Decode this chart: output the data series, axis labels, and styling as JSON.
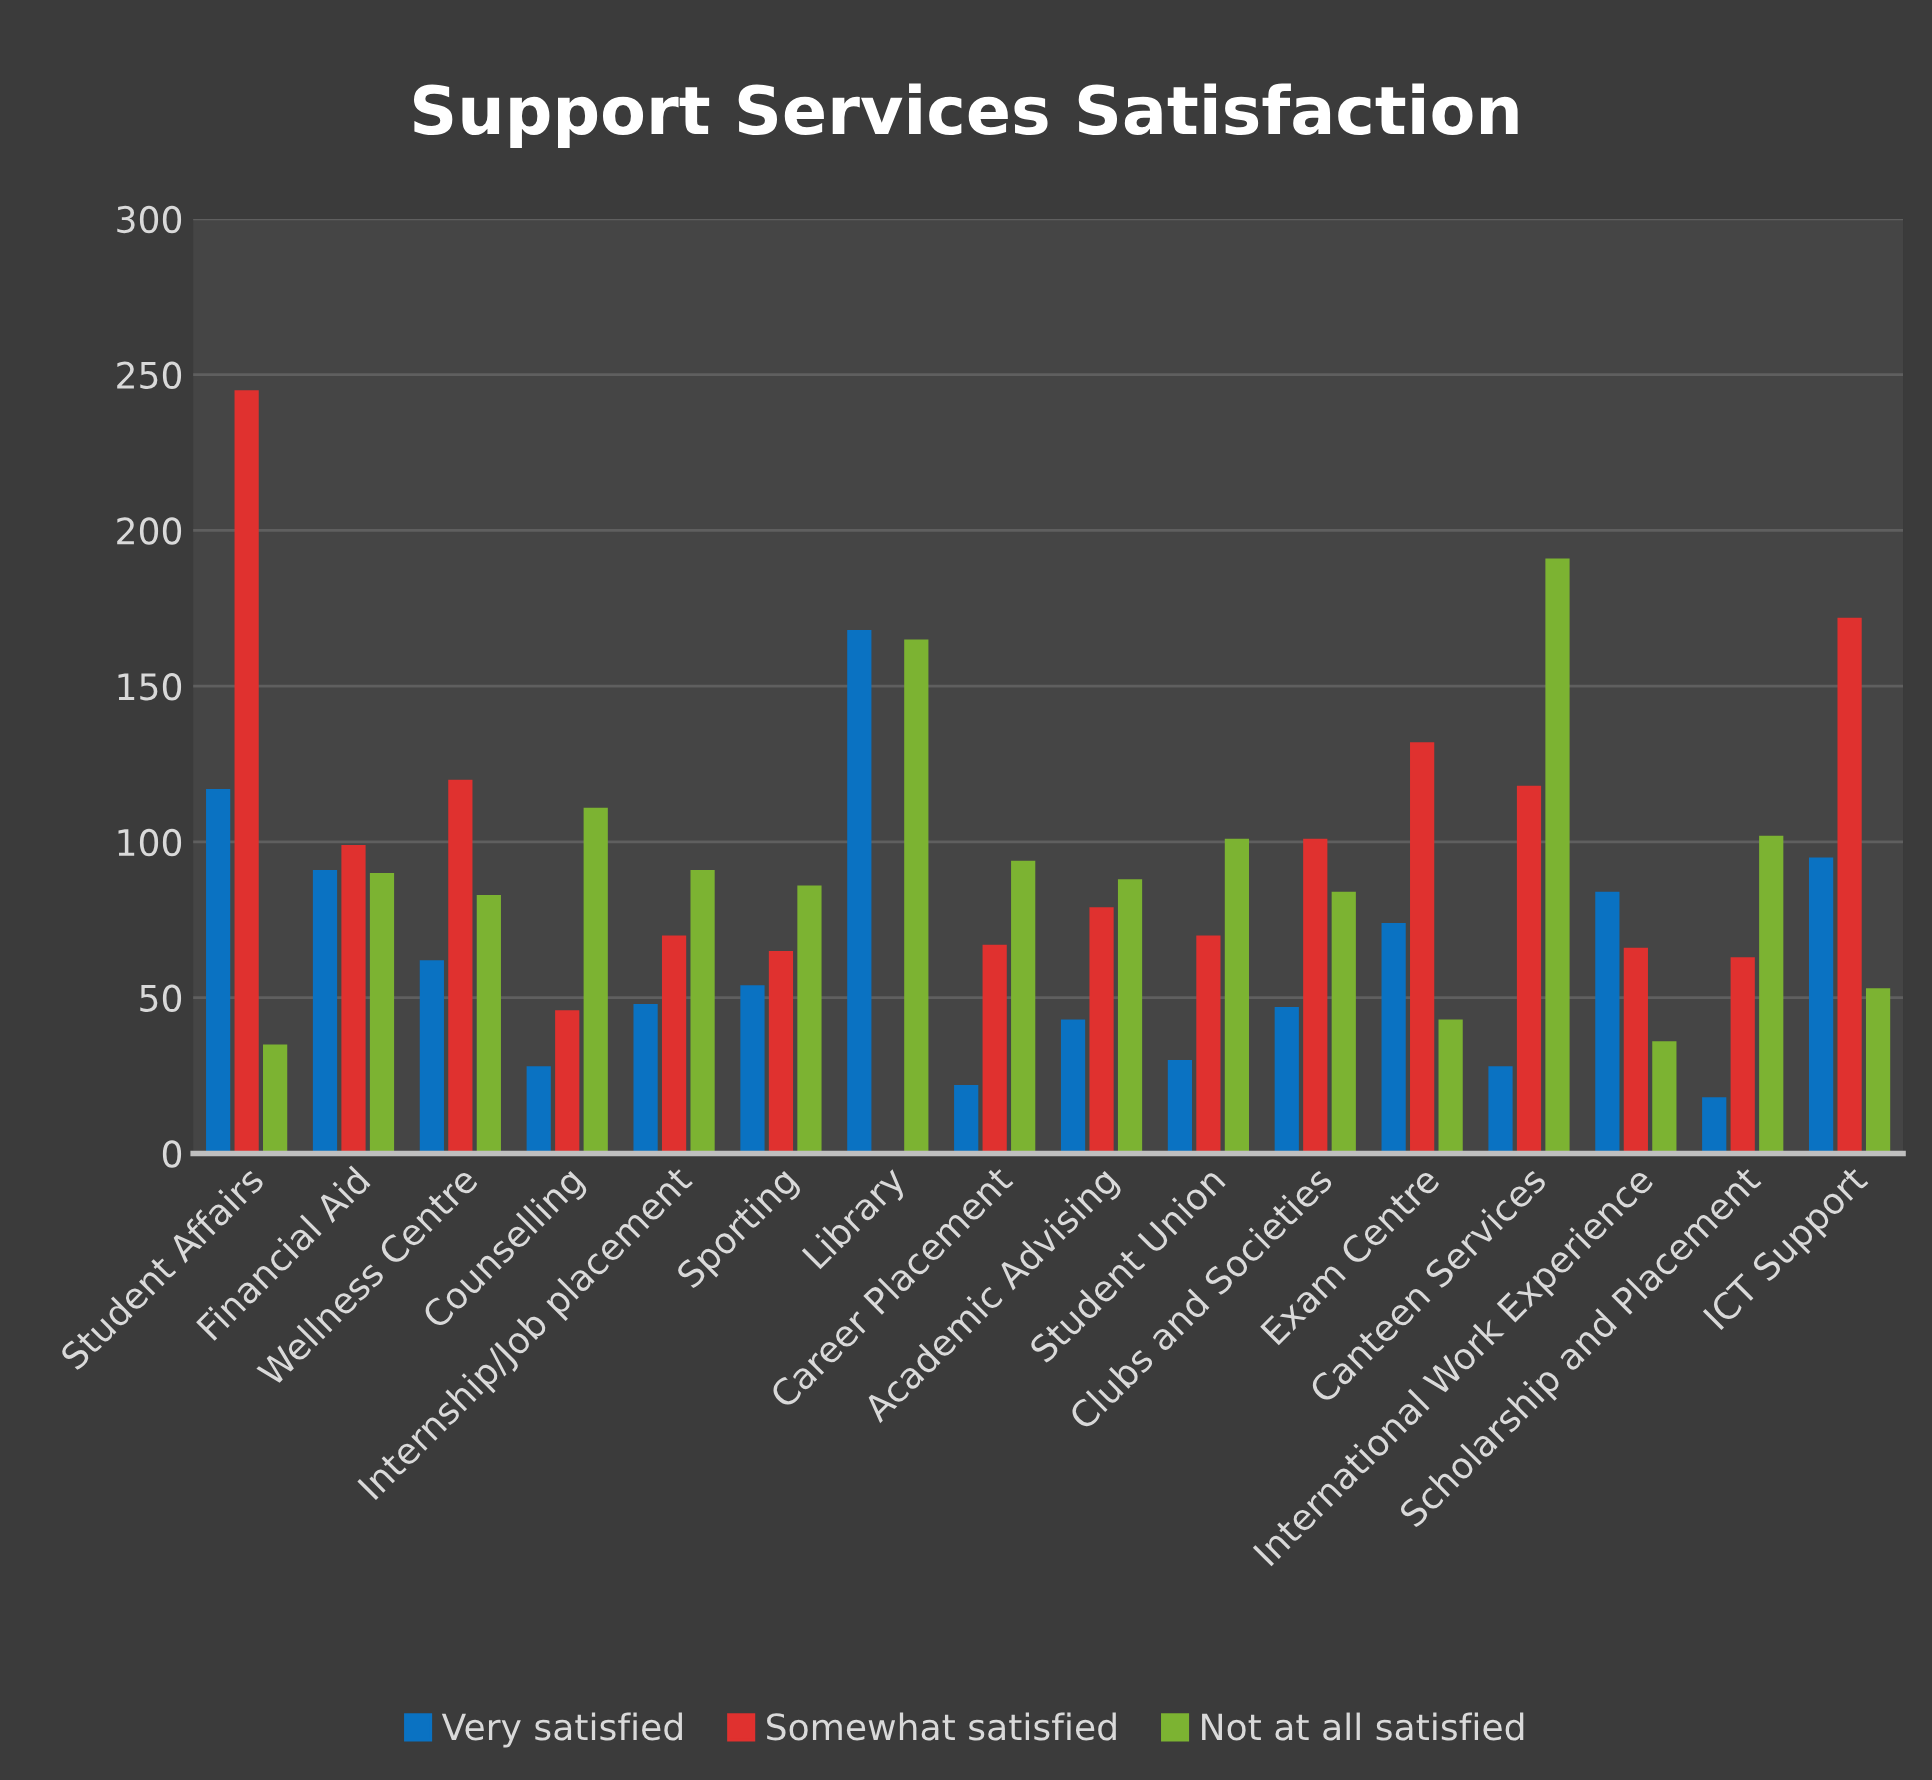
{
  "chart_data": {
    "type": "bar",
    "title": "Support Services Satisfaction",
    "categories": [
      "Student Affairs",
      "Financial Aid",
      "Wellness Centre",
      "Counselling",
      "Internship/Job placement",
      "Sporting",
      "Library",
      "Career Placement",
      "Academic Advising",
      "Student Union",
      "Clubs and Societies",
      "Exam Centre",
      "Canteen Services",
      "International Work Experience",
      "Scholarship and Placement",
      "ICT Support"
    ],
    "series": [
      {
        "name": "Very satisfied",
        "color": "#0a72c2",
        "values": [
          117,
          91,
          62,
          28,
          48,
          54,
          168,
          22,
          43,
          30,
          47,
          74,
          28,
          84,
          18,
          95
        ]
      },
      {
        "name": "Somewhat satisfied",
        "color": "#e0312f",
        "values": [
          245,
          99,
          120,
          46,
          70,
          65,
          null,
          67,
          79,
          70,
          101,
          132,
          118,
          66,
          63,
          172
        ]
      },
      {
        "name": "Not at all satisfied",
        "color": "#7cb332",
        "values": [
          35,
          90,
          83,
          111,
          91,
          86,
          165,
          94,
          88,
          101,
          84,
          43,
          191,
          36,
          102,
          53
        ]
      }
    ],
    "ylim": [
      0,
      300
    ],
    "yticks": [
      0,
      50,
      100,
      150,
      200,
      250,
      300
    ],
    "grid": "y",
    "legend": "bottom"
  }
}
